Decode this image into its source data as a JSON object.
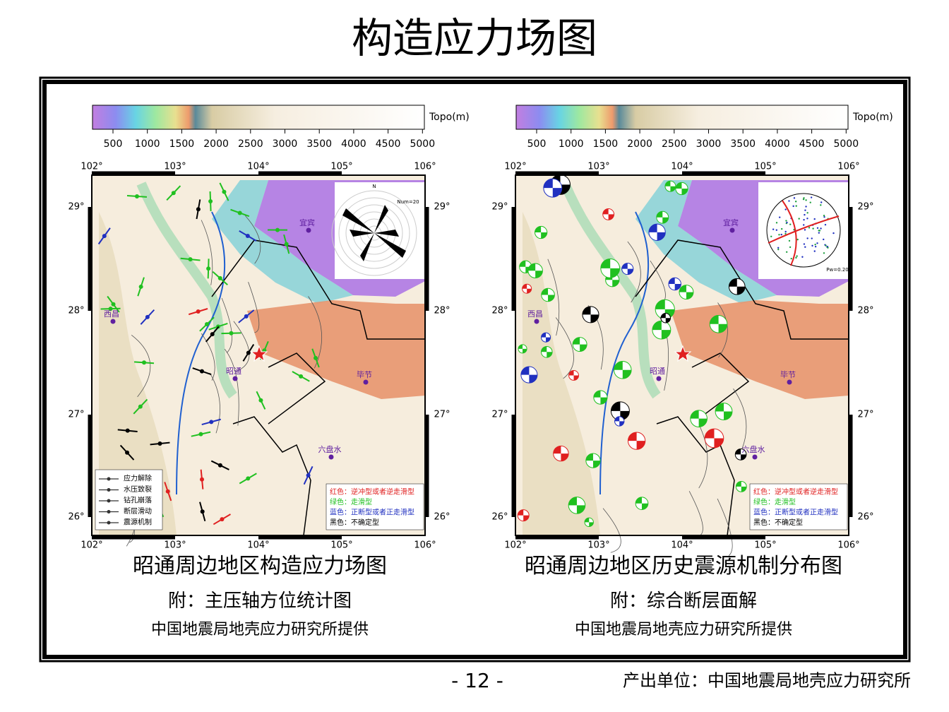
{
  "title": "构造应力场图",
  "panels": [
    {
      "colorbar_label": "Topo(m)",
      "colorbar_ticks": [
        "500",
        "1000",
        "1500",
        "2000",
        "2500",
        "3000",
        "3500",
        "4000",
        "4500",
        "5000"
      ],
      "lon_labels": [
        "102°",
        "103°",
        "104°",
        "105°",
        "106°"
      ],
      "lat_labels": [
        "29°",
        "28°",
        "27°",
        "26°"
      ],
      "cities": [
        "宜宾",
        "西昌",
        "昭通",
        "毕节",
        "六盘水"
      ],
      "inset_labels": [
        "N",
        "Num=20"
      ],
      "symbol_legend": [
        "应力解除",
        "水压致裂",
        "钻孔崩落",
        "断层滑动",
        "震源机制"
      ],
      "color_legend": [
        "红色：逆冲型或者逆走滑型",
        "绿色：走滑型",
        "蓝色：正断型或者正走滑型",
        "黑色：不确定型"
      ],
      "caption": "昭通周边地区构造应力场图",
      "subcaption": "附：主压轴方位统计图",
      "credit": "中国地震局地壳应力研究所提供"
    },
    {
      "colorbar_label": "Topo(m)",
      "colorbar_ticks": [
        "500",
        "1000",
        "1500",
        "2000",
        "2500",
        "3000",
        "3500",
        "4000",
        "4500",
        "5000"
      ],
      "lon_labels": [
        "102°",
        "103°",
        "104°",
        "105°",
        "106°"
      ],
      "lat_labels": [
        "29°",
        "28°",
        "27°",
        "26°"
      ],
      "cities": [
        "宜宾",
        "西昌",
        "昭通",
        "毕节",
        "六盘水"
      ],
      "inset_labels": [
        "Pw=0.20"
      ],
      "color_legend": [
        "红色：逆冲型或者逆走滑型",
        "绿色：走滑型",
        "蓝色：正断型或者正走滑型",
        "黑色：不确定型"
      ],
      "caption": "昭通周边地区历史震源机制分布图",
      "subcaption": "附：综合断层面解",
      "credit": "中国地震局地壳应力研究所提供"
    }
  ],
  "footer": {
    "page": "- 12 -",
    "producer": "产出单位：中国地震局地壳应力研究所"
  }
}
